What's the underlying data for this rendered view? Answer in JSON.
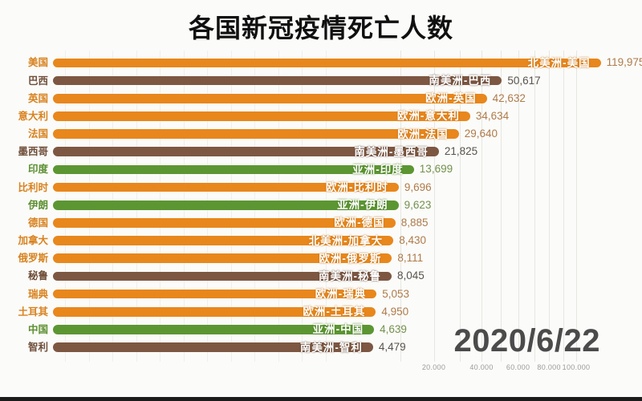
{
  "title": "各国新冠疫情死亡人数",
  "date_label": "2020/6/22",
  "palette": {
    "orange": {
      "bar": "#E8871C",
      "country_label": "#D8821E",
      "value_text": "#AE7B4B",
      "halo": "#C06E10"
    },
    "green": {
      "bar": "#5C9632",
      "country_label": "#5B8F2F",
      "value_text": "#73914D",
      "halo": "#477A1F"
    },
    "brown": {
      "bar": "#7D5742",
      "country_label": "#6F4E3A",
      "value_text": "#58534D",
      "halo": "#5D4030"
    }
  },
  "chart_data": {
    "type": "bar",
    "orientation": "horizontal",
    "title": "各国新冠疫情死亡人数",
    "date_label": "2020/6/22",
    "x_scale": "sqrt",
    "x_ticks": [
      {
        "label": "20.000",
        "value": 20000
      },
      {
        "label": "40.000",
        "value": 40000
      },
      {
        "label": "60.000",
        "value": 60000
      },
      {
        "label": "80.000",
        "value": 80000
      },
      {
        "label": "100.000",
        "value": 100000
      }
    ],
    "grid_minor_values": [
      0,
      1,
      2,
      3,
      4,
      5,
      6,
      7,
      8,
      9,
      10,
      11
    ],
    "grid_major_values": [
      10000,
      20000,
      30000,
      40000,
      50000,
      60000,
      70000,
      80000,
      90000,
      100000
    ],
    "rows": [
      {
        "country": "美国",
        "bar_label": "北美洲-美国",
        "value": 119975,
        "value_display": "119,975",
        "color": "orange"
      },
      {
        "country": "巴西",
        "bar_label": "南美洲-巴西",
        "value": 50617,
        "value_display": "50,617",
        "color": "brown"
      },
      {
        "country": "英国",
        "bar_label": "欧洲-英国",
        "value": 42632,
        "value_display": "42,632",
        "color": "orange"
      },
      {
        "country": "意大利",
        "bar_label": "欧洲-意大利",
        "value": 34634,
        "value_display": "34,634",
        "color": "orange"
      },
      {
        "country": "法国",
        "bar_label": "欧洲-法国",
        "value": 29640,
        "value_display": "29,640",
        "color": "orange"
      },
      {
        "country": "墨西哥",
        "bar_label": "南美洲-墨西哥",
        "value": 21825,
        "value_display": "21,825",
        "color": "brown"
      },
      {
        "country": "印度",
        "bar_label": "亚洲-印度",
        "value": 13699,
        "value_display": "13,699",
        "color": "green"
      },
      {
        "country": "比利时",
        "bar_label": "欧洲-比利时",
        "value": 9696,
        "value_display": "9,696",
        "color": "orange"
      },
      {
        "country": "伊朗",
        "bar_label": "亚洲-伊朗",
        "value": 9623,
        "value_display": "9,623",
        "color": "green"
      },
      {
        "country": "德国",
        "bar_label": "欧洲-德国",
        "value": 8885,
        "value_display": "8,885",
        "color": "orange"
      },
      {
        "country": "加拿大",
        "bar_label": "北美洲-加拿大",
        "value": 8430,
        "value_display": "8,430",
        "color": "orange"
      },
      {
        "country": "俄罗斯",
        "bar_label": "欧洲-俄罗斯",
        "value": 8111,
        "value_display": "8,111",
        "color": "orange"
      },
      {
        "country": "秘鲁",
        "bar_label": "南美洲-秘鲁",
        "value": 8045,
        "value_display": "8,045",
        "color": "brown"
      },
      {
        "country": "瑞典",
        "bar_label": "欧洲-瑞典",
        "value": 5053,
        "value_display": "5,053",
        "color": "orange"
      },
      {
        "country": "土耳其",
        "bar_label": "欧洲-土耳其",
        "value": 4950,
        "value_display": "4,950",
        "color": "orange"
      },
      {
        "country": "中国",
        "bar_label": "亚洲-中国",
        "value": 4639,
        "value_display": "4,639",
        "color": "green"
      },
      {
        "country": "智利",
        "bar_label": "南美洲-智利",
        "value": 4479,
        "value_display": "4,479",
        "color": "brown"
      }
    ]
  }
}
